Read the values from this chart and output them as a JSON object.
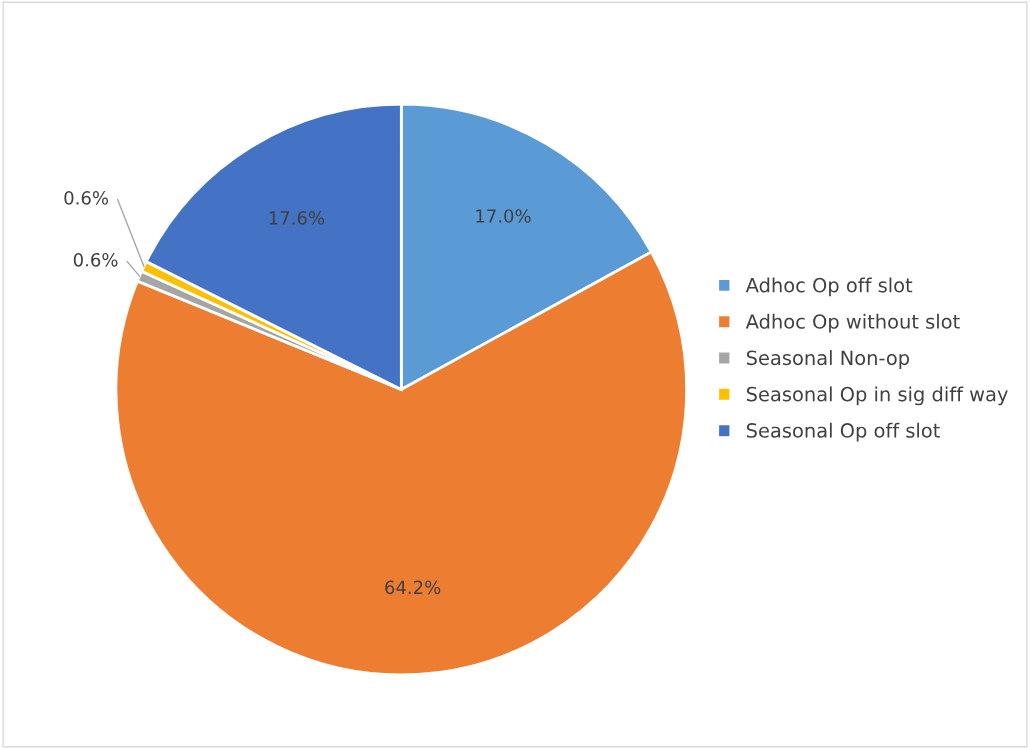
{
  "chart_data": {
    "type": "pie",
    "categories": [
      "Adhoc Op off slot",
      "Adhoc Op without slot",
      "Seasonal Non-op",
      "Seasonal Op in sig diff way",
      "Seasonal Op off slot"
    ],
    "values": [
      17.0,
      64.2,
      0.6,
      0.6,
      17.6
    ],
    "colors": [
      "#5b9bd5",
      "#ed7d31",
      "#a5a5a5",
      "#ffc000",
      "#4472c4"
    ],
    "value_labels": [
      "17.0%",
      "64.2%",
      "0.6%",
      "0.6%",
      "17.6%"
    ],
    "legend": "right"
  }
}
